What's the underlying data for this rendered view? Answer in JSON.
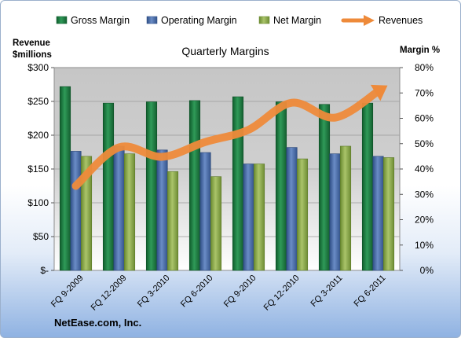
{
  "chart_data": {
    "type": "bar",
    "title": "Quarterly Margins",
    "left_axis_label_line1": "Revenue",
    "left_axis_label_line2": "$millions",
    "right_axis_label": "Margin %",
    "footer": "NetEase.com, Inc.",
    "categories": [
      "FQ 9-2009",
      "FQ 12-2009",
      "FQ 3-2010",
      "FQ 6-2010",
      "FQ 9-2010",
      "FQ 12-2010",
      "FQ 3-2011",
      "FQ 6-2011"
    ],
    "left_axis": {
      "min": 0,
      "max": 300,
      "step": 50,
      "tick_labels": [
        "$-",
        "$50",
        "$100",
        "$150",
        "$200",
        "$250",
        "$300"
      ]
    },
    "right_axis": {
      "min": 0,
      "max": 80,
      "step": 10,
      "tick_labels": [
        "0%",
        "10%",
        "20%",
        "30%",
        "40%",
        "50%",
        "60%",
        "70%",
        "80%"
      ]
    },
    "series": [
      {
        "name": "Gross Margin",
        "kind": "bar",
        "axis": "right",
        "color": "#1e7a42",
        "values": [
          72.5,
          66,
          66.5,
          67,
          68.5,
          66.5,
          65.5,
          66
        ]
      },
      {
        "name": "Operating Margin",
        "kind": "bar",
        "axis": "right",
        "color": "#4a6fae",
        "values": [
          47,
          49,
          47.5,
          46.5,
          42,
          48.5,
          46,
          45
        ]
      },
      {
        "name": "Net Margin",
        "kind": "bar",
        "axis": "right",
        "color": "#8caa4c",
        "values": [
          45,
          46,
          39,
          37,
          42,
          44,
          49,
          44.5
        ]
      },
      {
        "name": "Revenues",
        "kind": "line",
        "axis": "left",
        "color": "#ee8a3a",
        "values": [
          125,
          182,
          168,
          190,
          208,
          248,
          226,
          265
        ]
      }
    ],
    "legend_position": "top",
    "grid": true
  }
}
